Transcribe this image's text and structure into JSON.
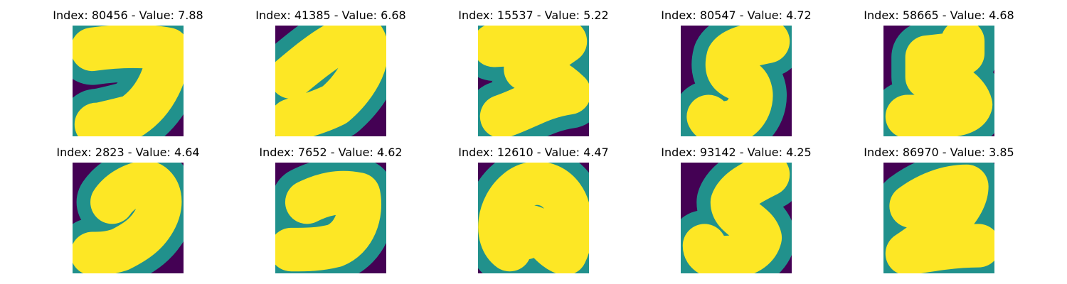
{
  "figure": {
    "colormap": "viridis",
    "colors": {
      "background": "#440154",
      "edge": "#21918c",
      "stroke": "#fde725"
    },
    "panels": [
      {
        "title": "Index: 80456 - Value: 7.88",
        "digit": "7"
      },
      {
        "title": "Index: 41385 - Value: 6.68",
        "digit": "7"
      },
      {
        "title": "Index: 15537 - Value: 5.22",
        "digit": "3"
      },
      {
        "title": "Index: 80547 - Value: 4.72",
        "digit": "5"
      },
      {
        "title": "Index: 58665 - Value: 4.68",
        "digit": "5"
      },
      {
        "title": "Index: 2823 - Value: 4.64",
        "digit": "7"
      },
      {
        "title": "Index: 7652 - Value: 4.62",
        "digit": "7"
      },
      {
        "title": "Index: 12610 - Value: 4.47",
        "digit": "0"
      },
      {
        "title": "Index: 93142 - Value: 4.25",
        "digit": "5"
      },
      {
        "title": "Index: 86970 - Value: 3.85",
        "digit": "2"
      }
    ]
  }
}
